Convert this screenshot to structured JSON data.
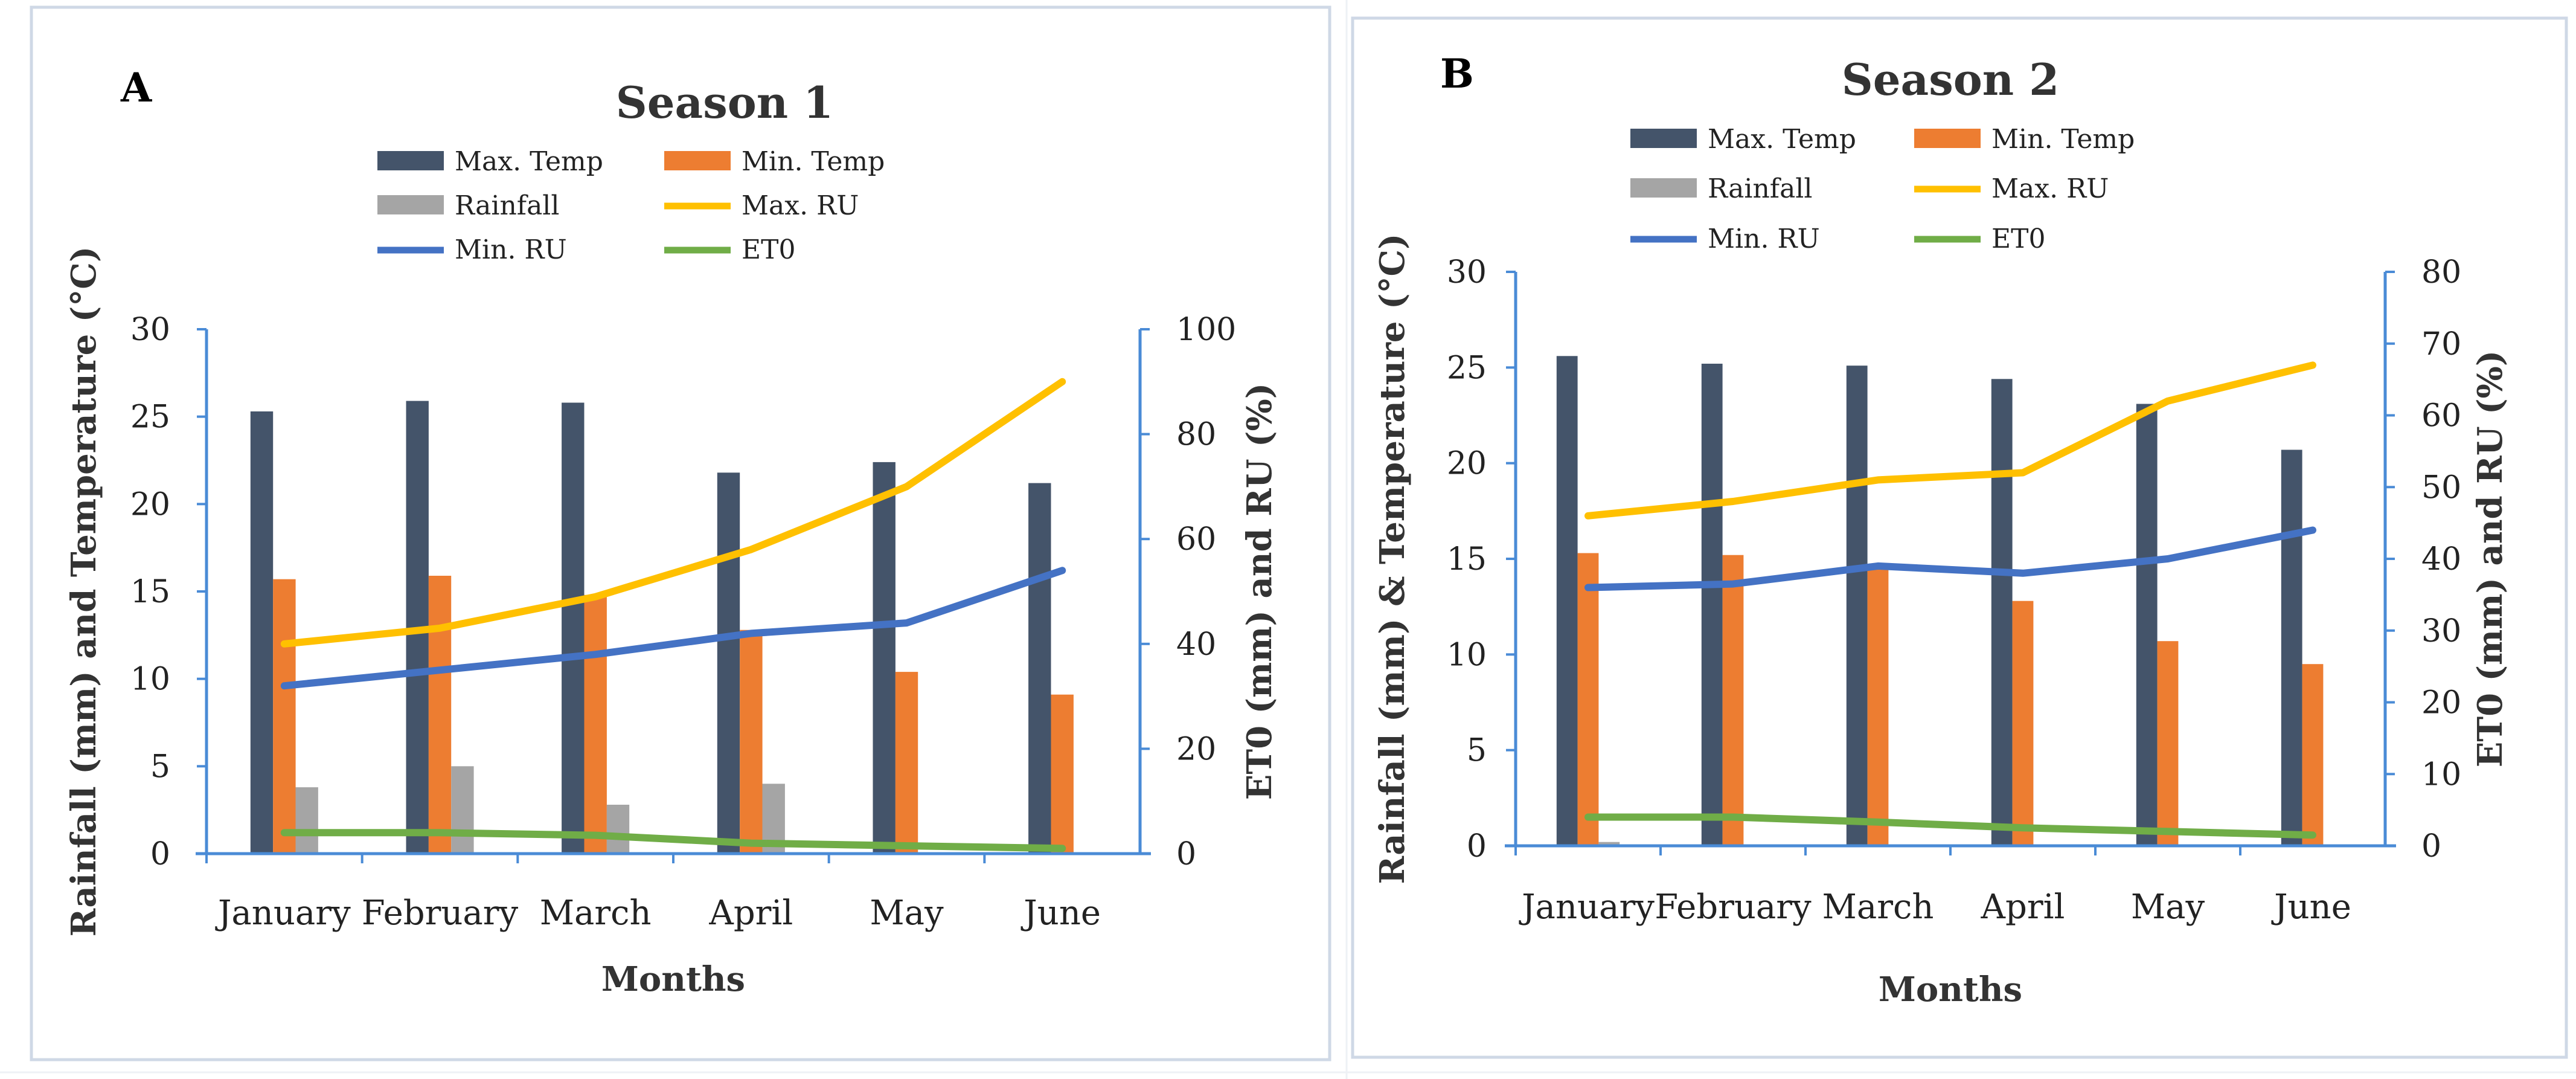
{
  "chart_data": [
    {
      "type": "bar",
      "panel_label": "A",
      "title": "Season 1",
      "xlabel": "Months",
      "ylabel": "Rainfall (mm) and Temperature (°C)",
      "y2label": "ET0 (mm) and RU (%)",
      "ylim": [
        0,
        30
      ],
      "y2lim": [
        0,
        100
      ],
      "y_ticks": [
        "0",
        "5",
        "10",
        "15",
        "20",
        "25",
        "30"
      ],
      "y2_ticks": [
        "0",
        "20",
        "40",
        "60",
        "80",
        "100"
      ],
      "categories": [
        "January",
        "February",
        "March",
        "April",
        "May",
        "June"
      ],
      "bar_series": [
        {
          "name": "Max. Temp",
          "color": "#44546a",
          "values": [
            25.3,
            25.9,
            25.8,
            21.8,
            22.4,
            21.2
          ]
        },
        {
          "name": "Min. Temp",
          "color": "#ed7d31",
          "values": [
            15.7,
            15.9,
            14.8,
            12.8,
            10.4,
            9.1
          ]
        },
        {
          "name": "Rainfall",
          "color": "#a5a5a5",
          "values": [
            3.8,
            5.0,
            2.8,
            4.0,
            0,
            0
          ]
        }
      ],
      "line_series": [
        {
          "name": "Max. RU",
          "color": "#ffc000",
          "axis": "y2",
          "values": [
            40,
            43,
            49,
            58,
            70,
            90
          ]
        },
        {
          "name": "Min. RU",
          "color": "#4472c4",
          "axis": "y2",
          "values": [
            32,
            35,
            38,
            42,
            44,
            54
          ]
        },
        {
          "name": "ET0",
          "color": "#70ad47",
          "axis": "y2",
          "values": [
            4,
            4,
            3.5,
            2,
            1.5,
            1
          ]
        }
      ],
      "legend": [
        "Max. Temp",
        "Min. Temp",
        "Rainfall",
        "Max. RU",
        "Min. RU",
        "ET0"
      ]
    },
    {
      "type": "bar",
      "panel_label": "B",
      "title": "Season 2",
      "xlabel": "Months",
      "ylabel": "Rainfall (mm) & Temperature (°C)",
      "y2label": "ET0 (mm) and RU (%)",
      "ylim": [
        0,
        30
      ],
      "y2lim": [
        0,
        80
      ],
      "y_ticks": [
        "0",
        "5",
        "10",
        "15",
        "20",
        "25",
        "30"
      ],
      "y2_ticks": [
        "0",
        "10",
        "20",
        "30",
        "40",
        "50",
        "60",
        "70",
        "80"
      ],
      "categories": [
        "January",
        "February",
        "March",
        "April",
        "May",
        "June"
      ],
      "bar_series": [
        {
          "name": "Max. Temp",
          "color": "#44546a",
          "values": [
            25.6,
            25.2,
            25.1,
            24.4,
            23.1,
            20.7
          ]
        },
        {
          "name": "Min. Temp",
          "color": "#ed7d31",
          "values": [
            15.3,
            15.2,
            14.5,
            12.8,
            10.7,
            9.5
          ]
        },
        {
          "name": "Rainfall",
          "color": "#a5a5a5",
          "values": [
            0.2,
            0,
            0,
            0,
            0,
            0
          ]
        }
      ],
      "line_series": [
        {
          "name": "Max. RU",
          "color": "#ffc000",
          "axis": "y2",
          "values": [
            46,
            48,
            51,
            52,
            62,
            67
          ]
        },
        {
          "name": "Min. RU",
          "color": "#4472c4",
          "axis": "y2",
          "values": [
            36,
            36.5,
            39,
            38,
            40,
            44
          ]
        },
        {
          "name": "ET0",
          "color": "#70ad47",
          "axis": "y2",
          "values": [
            4,
            4,
            3.3,
            2.5,
            2,
            1.5
          ]
        }
      ],
      "legend": [
        "Max. Temp",
        "Min. Temp",
        "Rainfall",
        "Max. RU",
        "Min. RU",
        "ET0"
      ]
    }
  ]
}
